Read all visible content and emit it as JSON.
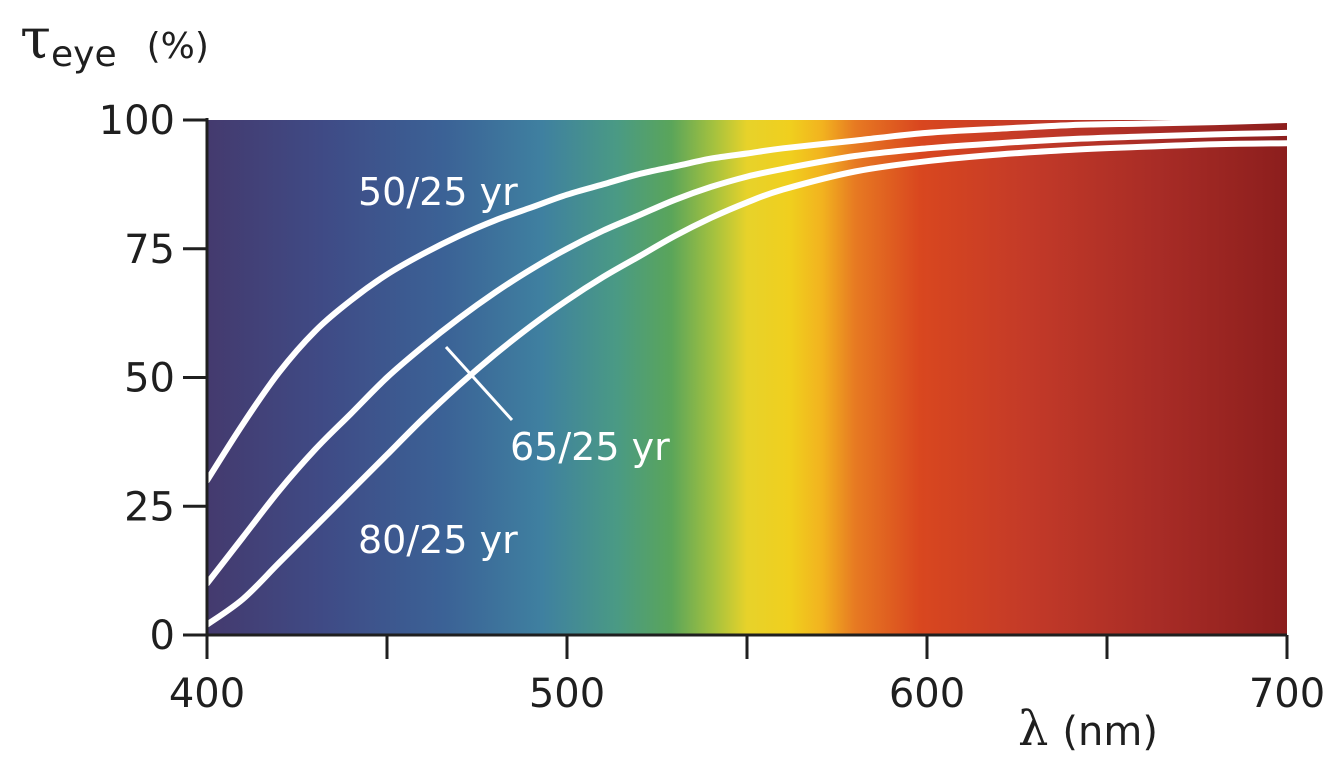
{
  "chart_data": {
    "type": "line",
    "ylabel_symbol": "τ",
    "ylabel_subscript": "eye",
    "ylabel_unit": "(%)",
    "xlabel_symbol": "λ",
    "xlabel_unit": "(nm)",
    "xlim": [
      400,
      700
    ],
    "ylim": [
      0,
      100
    ],
    "x_ticks": [
      400,
      450,
      500,
      550,
      600,
      650,
      700
    ],
    "x_tick_labels": [
      "400",
      "",
      "500",
      "",
      "600",
      "",
      "700"
    ],
    "y_ticks": [
      0,
      25,
      50,
      75,
      100
    ],
    "y_tick_labels": [
      "0",
      "25",
      "50",
      "75",
      "100"
    ],
    "background": "visible spectrum color gradient",
    "series": [
      {
        "name": "50/25 yr",
        "x": [
          400,
          410,
          420,
          430,
          440,
          450,
          460,
          470,
          480,
          490,
          500,
          510,
          520,
          530,
          540,
          550,
          560,
          580,
          600,
          620,
          640,
          660,
          680,
          700
        ],
        "values": [
          30,
          41,
          51,
          59,
          65,
          70,
          74,
          77.5,
          80.5,
          83,
          85.5,
          87.5,
          89.5,
          91,
          92.5,
          93.5,
          94.5,
          96,
          97.5,
          98.3,
          99,
          99.3,
          99.6,
          100
        ]
      },
      {
        "name": "65/25 yr",
        "x": [
          400,
          410,
          420,
          430,
          440,
          450,
          460,
          470,
          480,
          490,
          500,
          510,
          520,
          530,
          540,
          550,
          560,
          580,
          600,
          620,
          640,
          660,
          680,
          700
        ],
        "values": [
          10,
          19,
          28,
          36,
          43,
          50,
          56,
          61.5,
          66.5,
          71,
          75,
          78.5,
          81.5,
          84.5,
          87,
          89,
          90.5,
          93,
          94.5,
          95.5,
          96.3,
          96.8,
          97.2,
          97.5
        ]
      },
      {
        "name": "80/25 yr",
        "x": [
          400,
          410,
          420,
          430,
          440,
          450,
          460,
          470,
          480,
          490,
          500,
          510,
          520,
          530,
          540,
          550,
          560,
          580,
          600,
          620,
          640,
          660,
          680,
          700
        ],
        "values": [
          2,
          7,
          14,
          21,
          28,
          35,
          42,
          48.5,
          54.5,
          60,
          65,
          69.5,
          73.5,
          77.5,
          81,
          84,
          86.5,
          90,
          92,
          93.3,
          94.2,
          94.8,
          95.3,
          95.5
        ]
      }
    ],
    "labels": [
      "50/25 yr",
      "65/25 yr",
      "80/25 yr"
    ]
  }
}
